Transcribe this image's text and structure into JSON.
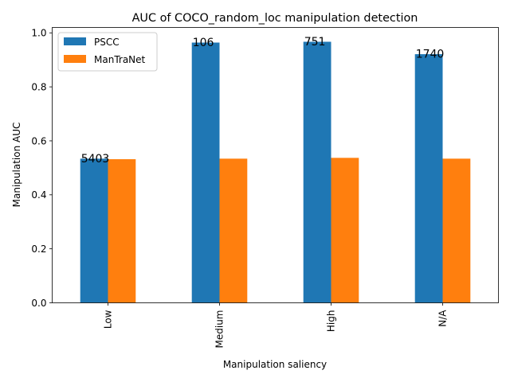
{
  "chart_data": {
    "type": "bar",
    "title": "AUC of COCO_random_loc manipulation detection",
    "xlabel": "Manipulation saliency",
    "ylabel": "Manipulation AUC",
    "categories": [
      "Low",
      "Medium",
      "High",
      "N/A"
    ],
    "ylim": [
      0,
      1.02
    ],
    "yticks": [
      0.0,
      0.2,
      0.4,
      0.6,
      0.8,
      1.0
    ],
    "ytick_labels": [
      "0.0",
      "0.2",
      "0.4",
      "0.6",
      "0.8",
      "1.0"
    ],
    "series": [
      {
        "name": "PSCC",
        "color": "#1f77b4",
        "values": [
          0.534,
          0.964,
          0.967,
          0.921
        ]
      },
      {
        "name": "ManTraNet",
        "color": "#ff7f0e",
        "values": [
          0.532,
          0.534,
          0.537,
          0.534
        ]
      }
    ],
    "annotations": [
      "5403",
      "106",
      "751",
      "1740"
    ],
    "legend_position": "top-left",
    "grid": false
  }
}
